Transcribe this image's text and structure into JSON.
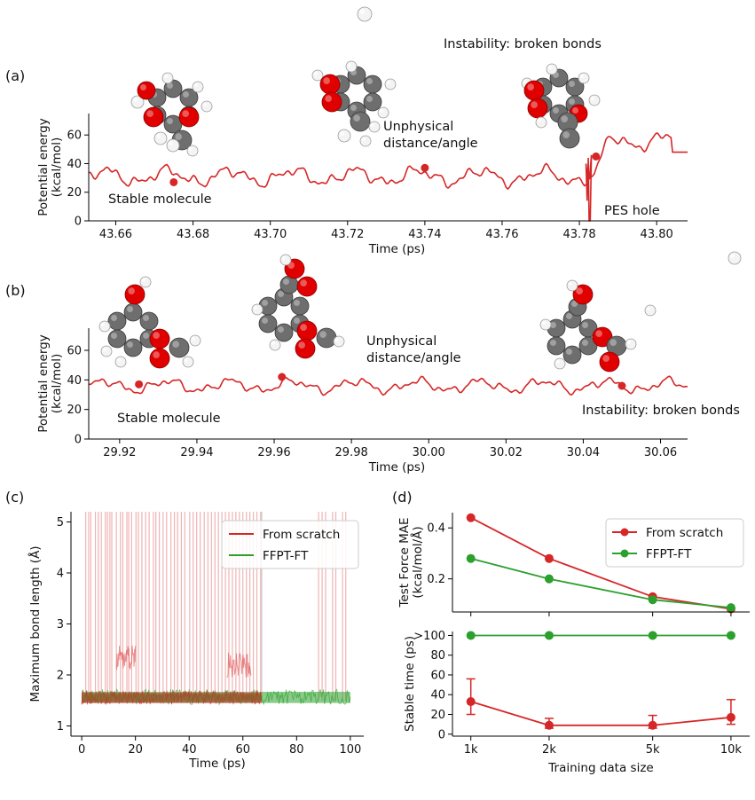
{
  "colors": {
    "scratch": "#d62728",
    "ffpt": "#2ca02c",
    "carbon": "#6e6e6e",
    "oxygen": "#e00000",
    "hydrogen": "#f4f4f4"
  },
  "chart_data": [
    {
      "panel": "(a)",
      "type": "line",
      "xlabel": "Time (ps)",
      "ylabel": "Potential energy (kcal/mol)",
      "xlim": [
        43.653,
        43.808
      ],
      "ylim": [
        0,
        75
      ],
      "xticks": [
        "43.66",
        "43.68",
        "43.70",
        "43.72",
        "43.74",
        "43.76",
        "43.78",
        "43.80"
      ],
      "yticks": [
        "0",
        "20",
        "40",
        "60"
      ],
      "series": [
        {
          "name": "",
          "color": "#d62728",
          "seed": 11,
          "base": 31,
          "amp": 8,
          "hole": {
            "x": 43.7825,
            "ymin": 0
          },
          "after": {
            "base": 56,
            "amp": 8,
            "start": 43.784
          }
        }
      ],
      "markers": [
        {
          "x": 43.675,
          "y": 27
        },
        {
          "x": 43.74,
          "y": 37
        },
        {
          "x": 43.7843,
          "y": 45
        }
      ],
      "annotations": [
        "Stable molecule",
        "Unphysical",
        "distance/angle",
        "Instability: broken bonds",
        "PES hole"
      ]
    },
    {
      "panel": "(b)",
      "type": "line",
      "xlabel": "Time (ps)",
      "ylabel": "Potential energy (kcal/mol)",
      "xlim": [
        29.912,
        30.067
      ],
      "ylim": [
        0,
        75
      ],
      "xticks": [
        "29.92",
        "29.94",
        "29.96",
        "29.98",
        "30.00",
        "30.02",
        "30.04",
        "30.06"
      ],
      "yticks": [
        "0",
        "20",
        "40",
        "60"
      ],
      "series": [
        {
          "name": "",
          "color": "#d62728",
          "seed": 23,
          "base": 36,
          "amp": 6
        }
      ],
      "markers": [
        {
          "x": 29.925,
          "y": 37
        },
        {
          "x": 29.962,
          "y": 42
        },
        {
          "x": 30.05,
          "y": 36
        }
      ],
      "annotations": [
        "Stable molecule",
        "Unphysical",
        "distance/angle",
        "Instability: broken bonds"
      ]
    },
    {
      "panel": "(c)",
      "type": "line",
      "xlabel": "Time (ps)",
      "ylabel": "Maximum bond length (Å)",
      "xlim": [
        -4,
        105
      ],
      "ylim": [
        0.8,
        5.2
      ],
      "xticks": [
        0,
        20,
        40,
        60,
        80,
        100
      ],
      "yticks": [
        1,
        2,
        3,
        4,
        5
      ],
      "series": [
        {
          "name": "From scratch",
          "color": "#d62728",
          "band": [
            1.42,
            1.7
          ],
          "end": 67,
          "spikes": [
            1.5,
            2.6,
            3.4,
            5.1,
            6.2,
            7.3,
            8.8,
            9.6,
            10.5,
            11.2,
            12.9,
            14.4,
            15.3,
            16.8,
            17.5,
            18.6,
            20.2,
            21.1,
            22.4,
            23.8,
            25.1,
            26.7,
            27.6,
            28.9,
            30.3,
            31.6,
            33.2,
            34.5,
            35.7,
            37.1,
            38.4,
            40.2,
            41.5,
            42.8,
            44.1,
            45.6,
            47.0,
            48.3,
            49.6,
            50.9,
            52.2,
            53.5,
            54.8,
            56.1,
            57.4,
            58.7,
            60.0,
            61.3,
            62.6,
            63.9,
            65.2,
            66.6,
            88.2,
            89.5,
            90.8,
            93.4,
            94.6,
            97.1,
            98.3
          ],
          "plateaus": [
            {
              "x": [
                13,
                20
              ],
              "y": 2.35
            },
            {
              "x": [
                54,
                63
              ],
              "y": 2.2
            }
          ]
        },
        {
          "name": "FFPT-FT",
          "color": "#2ca02c",
          "band": [
            1.42,
            1.72
          ],
          "end": 100
        }
      ],
      "legend": "top-right"
    },
    {
      "panel": "(d)",
      "type": "line",
      "xscale": "log",
      "xlabel": "Training data size",
      "xtick_labels": [
        "1k",
        "2k",
        "5k",
        "10k"
      ],
      "x": [
        1000,
        2000,
        5000,
        10000
      ],
      "top": {
        "ylabel": "Test Force MAE (kcal/mol/Å)",
        "ylim": [
          0.07,
          0.46
        ],
        "yticks": [
          "0.2",
          "0.4"
        ],
        "series": [
          {
            "name": "From scratch",
            "color": "#d62728",
            "values": [
              0.44,
              0.28,
              0.13,
              0.082
            ]
          },
          {
            "name": "FFPT-FT",
            "color": "#2ca02c",
            "values": [
              0.28,
              0.2,
              0.118,
              0.087
            ]
          }
        ],
        "legend": "top-right"
      },
      "bottom": {
        "ylabel": "Stable time (ps)",
        "ylim": [
          -2,
          104
        ],
        "yticks": [
          "0",
          "20",
          "40",
          "60",
          "80",
          ">100"
        ],
        "series": [
          {
            "name": "From scratch",
            "color": "#d62728",
            "values": [
              33,
              9,
              9,
              17
            ],
            "err_low": [
              20,
              6,
              6,
              10
            ],
            "err_high": [
              56,
              16,
              19,
              35
            ]
          },
          {
            "name": "FFPT-FT",
            "color": "#2ca02c",
            "values": [
              100,
              100,
              100,
              100
            ]
          }
        ]
      }
    }
  ]
}
